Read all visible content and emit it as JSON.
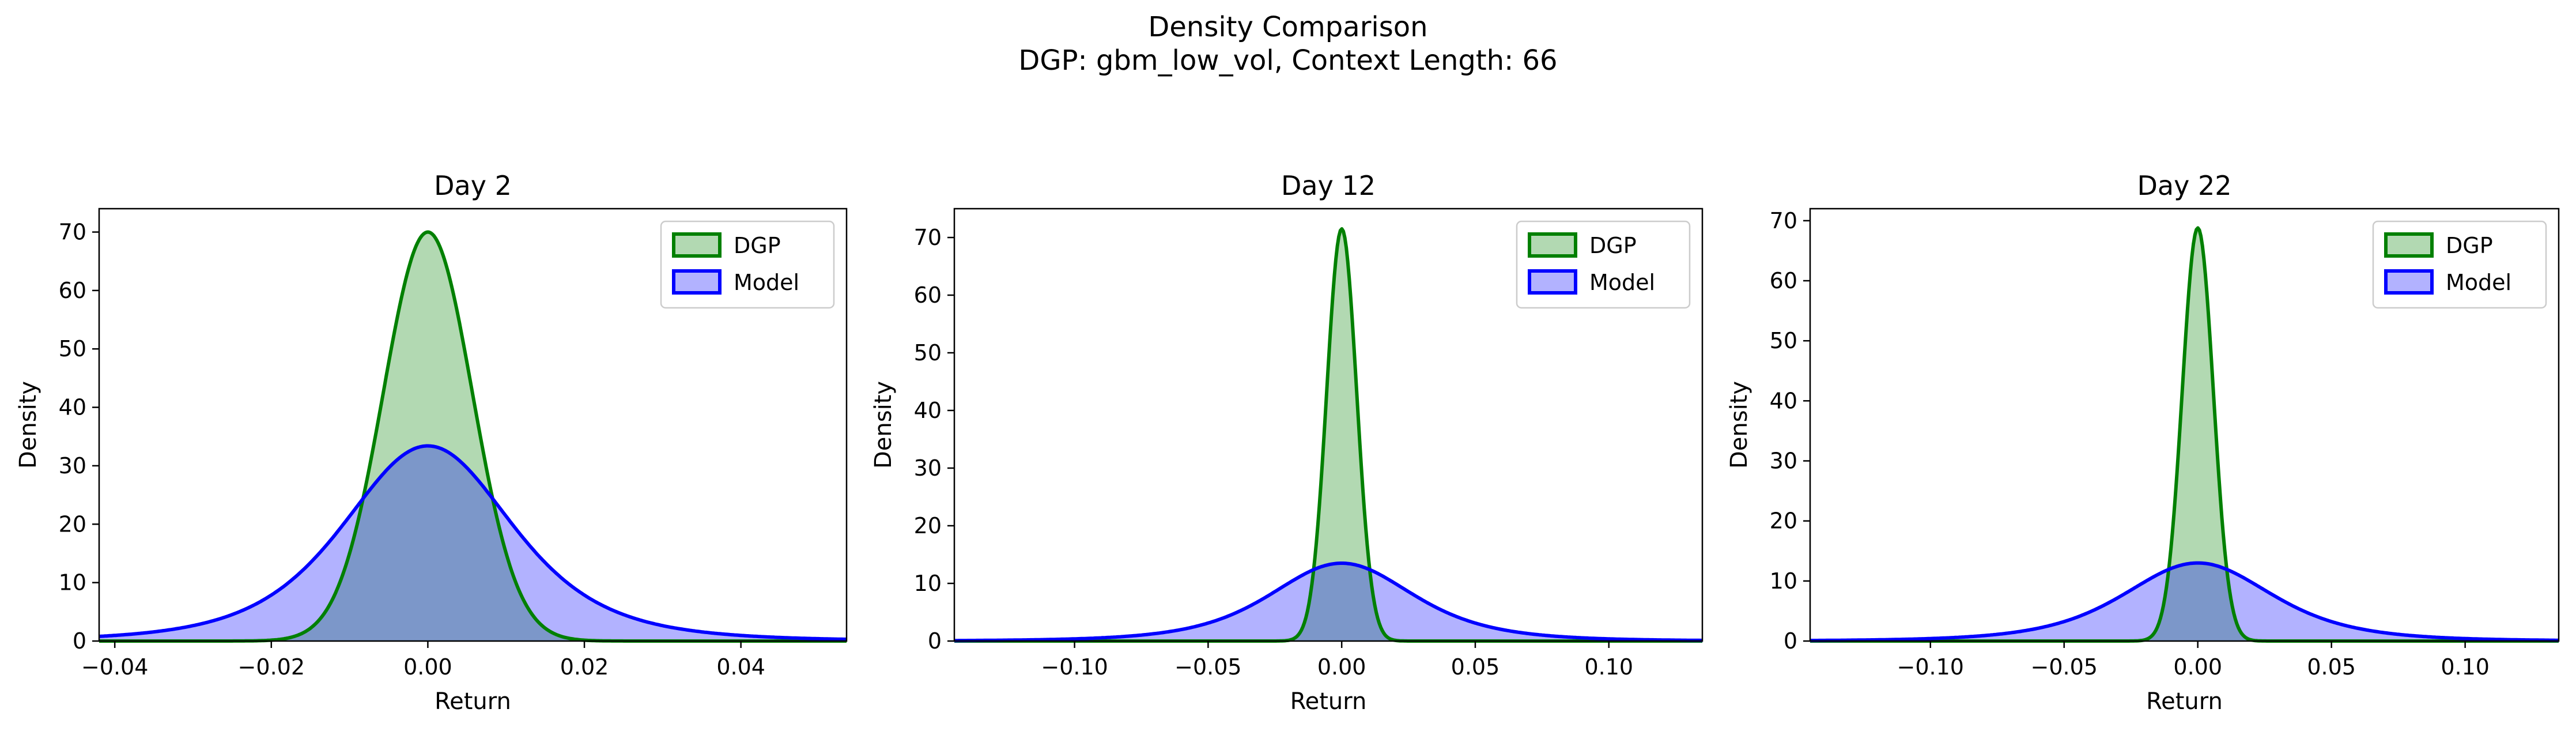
{
  "figure": {
    "title": "Density Comparison",
    "subtitle": "DGP: gbm_low_vol, Context Length: 66"
  },
  "chart_data": [
    {
      "type": "area",
      "title": "Day 2",
      "xlabel": "Return",
      "ylabel": "Density",
      "xlim": [
        -0.042,
        0.0535
      ],
      "ylim": [
        0,
        74
      ],
      "xticks": [
        -0.04,
        -0.02,
        0.0,
        0.02,
        0.04
      ],
      "xtick_labels": [
        "−0.04",
        "−0.02",
        "0.00",
        "0.02",
        "0.04"
      ],
      "yticks": [
        0,
        10,
        20,
        30,
        40,
        50,
        60,
        70
      ],
      "grid": false,
      "legend": "top-right",
      "series": [
        {
          "name": "DGP",
          "distribution": "normal",
          "mean": 0.0,
          "std": 0.0057,
          "peak_density": 70.0,
          "line_color": "#008000",
          "fill_color": "#008000"
        },
        {
          "name": "Model",
          "distribution": "student-t",
          "df": 4,
          "mean": 0.0,
          "scale": 0.0113,
          "peak_density": 33.4,
          "line_color": "#0000ff",
          "fill_color": "#0000ff"
        }
      ]
    },
    {
      "type": "area",
      "title": "Day 12",
      "xlabel": "Return",
      "ylabel": "Density",
      "xlim": [
        -0.145,
        0.135
      ],
      "ylim": [
        0,
        75
      ],
      "xticks": [
        -0.1,
        -0.05,
        0.0,
        0.05,
        0.1
      ],
      "xtick_labels": [
        "−0.10",
        "−0.05",
        "0.00",
        "0.05",
        "0.10"
      ],
      "yticks": [
        0,
        10,
        20,
        30,
        40,
        50,
        60,
        70
      ],
      "grid": false,
      "legend": "top-right",
      "series": [
        {
          "name": "DGP",
          "distribution": "normal",
          "mean": 0.0,
          "std": 0.0056,
          "peak_density": 71.5,
          "line_color": "#008000",
          "fill_color": "#008000"
        },
        {
          "name": "Model",
          "distribution": "student-t",
          "df": 4,
          "mean": 0.0,
          "scale": 0.028,
          "peak_density": 13.5,
          "line_color": "#0000ff",
          "fill_color": "#0000ff"
        }
      ]
    },
    {
      "type": "area",
      "title": "Day 22",
      "xlabel": "Return",
      "ylabel": "Density",
      "xlim": [
        -0.145,
        0.135
      ],
      "ylim": [
        0,
        72
      ],
      "xticks": [
        -0.1,
        -0.05,
        0.0,
        0.05,
        0.1
      ],
      "xtick_labels": [
        "−0.10",
        "−0.05",
        "0.00",
        "0.05",
        "0.10"
      ],
      "yticks": [
        0,
        10,
        20,
        30,
        40,
        50,
        60,
        70
      ],
      "grid": false,
      "legend": "top-right",
      "series": [
        {
          "name": "DGP",
          "distribution": "normal",
          "mean": 0.0,
          "std": 0.0058,
          "peak_density": 68.8,
          "line_color": "#008000",
          "fill_color": "#008000"
        },
        {
          "name": "Model",
          "distribution": "student-t",
          "df": 4,
          "mean": 0.0,
          "scale": 0.029,
          "peak_density": 13.0,
          "line_color": "#0000ff",
          "fill_color": "#0000ff"
        }
      ]
    }
  ]
}
